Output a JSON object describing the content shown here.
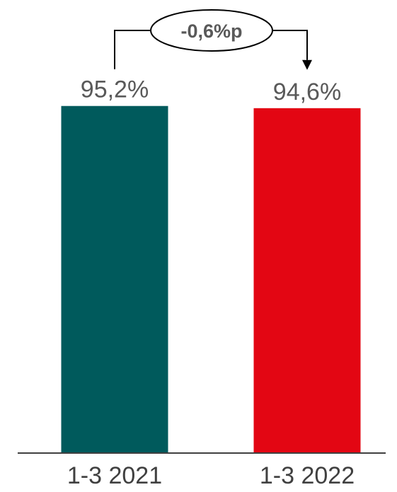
{
  "chart_data": {
    "type": "bar",
    "categories": [
      "1-3 2021",
      "1-3 2022"
    ],
    "values": [
      95.2,
      94.6
    ],
    "value_labels": [
      "95,2%",
      "94,6%"
    ],
    "colors": [
      "#005a5c",
      "#e30613"
    ],
    "ylim": [
      0,
      100
    ],
    "grid": false,
    "legend": "none",
    "annotation": {
      "text": "-0,6%p",
      "from": "1-3 2021",
      "to": "1-3 2022"
    },
    "title": "",
    "xlabel": "",
    "ylabel": ""
  }
}
